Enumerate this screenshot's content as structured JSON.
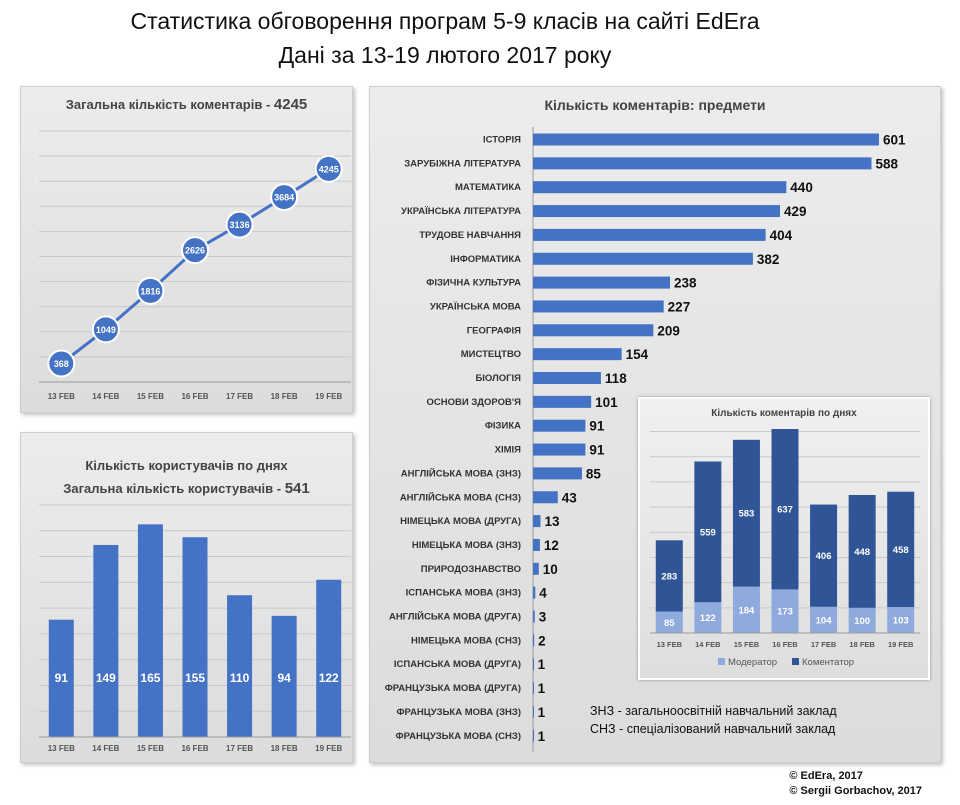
{
  "header": {
    "title": "Статистика обговорення програм 5-9 класів на сайті EdEra",
    "subtitle": "Дані за 13-19 лютого 2017 року"
  },
  "notes": {
    "zno": "ЗНЗ - загальноосвітній навчальний заклад",
    "sno": "СНЗ - спеціалізований навчальний заклад"
  },
  "copyright": {
    "line1": "© EdEra, 2017",
    "line2": "© Sergii Gorbachov, 2017"
  },
  "colors": {
    "bar": "#4472c4",
    "dark_bar": "#2f5597",
    "light_bar": "#8faadc",
    "grid": "#c9c9c9"
  },
  "chart_data": [
    {
      "id": "total",
      "type": "line",
      "title": "Загальна кількість коментарів - ",
      "title_value": "4245",
      "categories": [
        "13 FEB",
        "14 FEB",
        "15 FEB",
        "16 FEB",
        "17 FEB",
        "18 FEB",
        "19 FEB"
      ],
      "values": [
        368,
        1049,
        1816,
        2626,
        3136,
        3684,
        4245
      ],
      "ylim": [
        0,
        5000
      ],
      "grid": true
    },
    {
      "id": "users",
      "type": "bar",
      "title": "Кількість користувачів по днях",
      "subtitle": "Загальна кількість користувачів - ",
      "subtitle_value": "541",
      "categories": [
        "13 FEB",
        "14 FEB",
        "15 FEB",
        "16 FEB",
        "17 FEB",
        "18 FEB",
        "19 FEB"
      ],
      "values": [
        91,
        149,
        165,
        155,
        110,
        94,
        122
      ],
      "ylim": [
        0,
        180
      ],
      "grid": true
    },
    {
      "id": "subjects",
      "type": "bar",
      "orientation": "horizontal",
      "title": "Кількість коментарів: предмети",
      "categories": [
        "ІСТОРІЯ",
        "ЗАРУБІЖНА ЛІТЕРАТУРА",
        "МАТЕМАТИКА",
        "УКРАЇНСЬКА ЛІТЕРАТУРА",
        "ТРУДОВЕ НАВЧАННЯ",
        "ІНФОРМАТИКА",
        "ФІЗИЧНА КУЛЬТУРА",
        "УКРАЇНСЬКА МОВА",
        "ГЕОГРАФІЯ",
        "МИСТЕЦТВО",
        "БІОЛОГІЯ",
        "ОСНОВИ ЗДОРОВ'Я",
        "ФІЗИКА",
        "ХІМІЯ",
        "АНГЛІЙСЬКА МОВА (ЗНЗ)",
        "АНГЛІЙСЬКА МОВА (СНЗ)",
        "НІМЕЦЬКА МОВА (ДРУГА)",
        "НІМЕЦЬКА МОВА (ЗНЗ)",
        "ПРИРОДОЗНАВСТВО",
        "ІСПАНСЬКА МОВА (ЗНЗ)",
        "АНГЛІЙСЬКА МОВА (ДРУГА)",
        "НІМЕЦЬКА МОВА (СНЗ)",
        "ІСПАНСЬКА МОВА (ДРУГА)",
        "ФРАНЦУЗЬКА МОВА (ДРУГА)",
        "ФРАНЦУЗЬКА МОВА (ЗНЗ)",
        "ФРАНЦУЗЬКА МОВА (СНЗ)"
      ],
      "values": [
        601,
        588,
        440,
        429,
        404,
        382,
        238,
        227,
        209,
        154,
        118,
        101,
        91,
        91,
        85,
        43,
        13,
        12,
        10,
        4,
        3,
        2,
        1,
        1,
        1,
        1
      ],
      "xlim": [
        0,
        601
      ]
    },
    {
      "id": "days",
      "type": "bar",
      "stacked": true,
      "title": "Кількість коментарів по днях",
      "categories": [
        "13 FEB",
        "14 FEB",
        "15 FEB",
        "16 FEB",
        "17 FEB",
        "18 FEB",
        "19 FEB"
      ],
      "series": [
        {
          "name": "Модератор",
          "values": [
            85,
            122,
            184,
            173,
            104,
            100,
            103
          ]
        },
        {
          "name": "Коментатор",
          "values": [
            283,
            559,
            583,
            637,
            406,
            448,
            458
          ]
        }
      ],
      "ylim": [
        0,
        810
      ],
      "grid": true,
      "legend": "bottom"
    }
  ]
}
